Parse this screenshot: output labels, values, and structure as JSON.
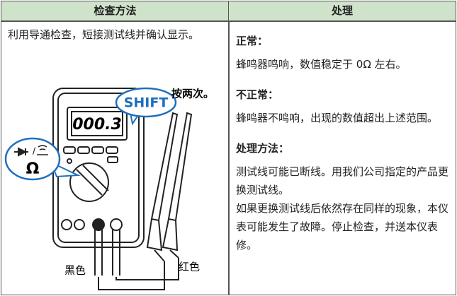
{
  "table": {
    "headers": [
      "检查方法",
      "处理"
    ],
    "left": {
      "text": "利用导通检查，短接测试线并确认显示。",
      "illustration": {
        "display": "000.3",
        "button": "SHIFT",
        "note": "按两次。",
        "dial_symbol": "Ω",
        "black_lead": "黑色",
        "red_lead": "红色"
      }
    },
    "right": {
      "sections": [
        {
          "heading": "正常：",
          "body": [
            "蜂鸣器鸣响，数值稳定于 0Ω 左右。"
          ]
        },
        {
          "heading": "不正常：",
          "body": [
            "蜂鸣器不鸣响，出现的数值超出上述范围。"
          ]
        },
        {
          "heading": "处理方法：",
          "body": [
            "测试线可能已断线。用我们公司指定的产品更换测试线。",
            "如果更换测试线后依然存在同样的现象，本仪表可能发生了故障。停止检查，并送本仪表修。"
          ]
        }
      ]
    }
  }
}
